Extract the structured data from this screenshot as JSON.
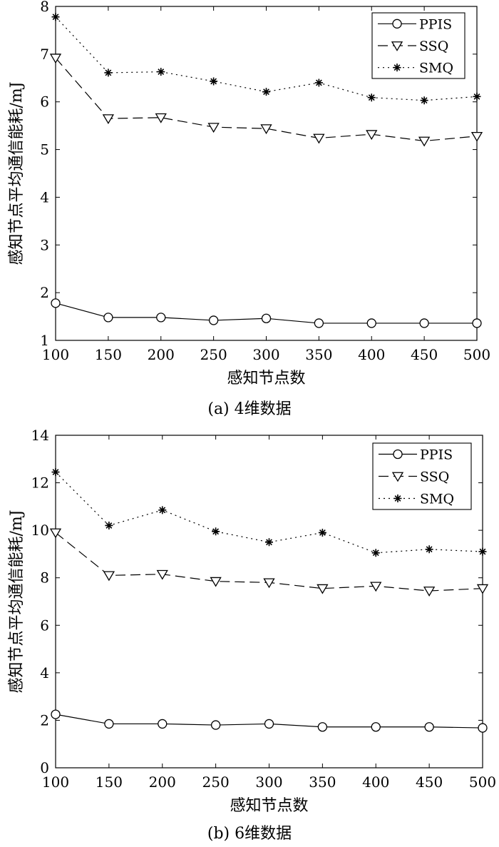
{
  "chart_data": [
    {
      "type": "line",
      "caption": "(a) 4维数据",
      "xlabel": "感知节点数",
      "ylabel": "感知节点平均通信能耗/mJ",
      "xlim": [
        100,
        500
      ],
      "ylim": [
        1,
        8
      ],
      "xticks": [
        100,
        150,
        200,
        250,
        300,
        350,
        400,
        450,
        500
      ],
      "yticks": [
        1,
        2,
        3,
        4,
        5,
        6,
        7,
        8
      ],
      "grid": false,
      "legend_position": "top-right",
      "x": [
        100,
        150,
        200,
        250,
        300,
        350,
        400,
        450,
        500
      ],
      "series": [
        {
          "name": "PPIS",
          "marker": "circle",
          "dash": "solid",
          "values": [
            1.78,
            1.48,
            1.48,
            1.42,
            1.46,
            1.36,
            1.36,
            1.36,
            1.36
          ]
        },
        {
          "name": "SSQ",
          "marker": "triangle-down",
          "dash": "dashed",
          "values": [
            6.92,
            5.65,
            5.67,
            5.47,
            5.44,
            5.24,
            5.32,
            5.18,
            5.28
          ]
        },
        {
          "name": "SMQ",
          "marker": "asterisk",
          "dash": "dotted",
          "values": [
            7.78,
            6.61,
            6.63,
            6.43,
            6.21,
            6.4,
            6.09,
            6.03,
            6.11
          ]
        }
      ]
    },
    {
      "type": "line",
      "caption": "(b) 6维数据",
      "xlabel": "感知节点数",
      "ylabel": "感知节点平均通信能耗/mJ",
      "xlim": [
        100,
        500
      ],
      "ylim": [
        0,
        14
      ],
      "xticks": [
        100,
        150,
        200,
        250,
        300,
        350,
        400,
        450,
        500
      ],
      "yticks": [
        0,
        2,
        4,
        6,
        8,
        10,
        12,
        14
      ],
      "grid": false,
      "legend_position": "top-right",
      "x": [
        100,
        150,
        200,
        250,
        300,
        350,
        400,
        450,
        500
      ],
      "series": [
        {
          "name": "PPIS",
          "marker": "circle",
          "dash": "solid",
          "values": [
            2.25,
            1.85,
            1.85,
            1.8,
            1.85,
            1.72,
            1.72,
            1.72,
            1.68
          ]
        },
        {
          "name": "SSQ",
          "marker": "triangle-down",
          "dash": "dashed",
          "values": [
            9.9,
            8.1,
            8.15,
            7.85,
            7.8,
            7.55,
            7.65,
            7.45,
            7.55
          ]
        },
        {
          "name": "SMQ",
          "marker": "asterisk",
          "dash": "dotted",
          "values": [
            12.45,
            10.2,
            10.85,
            9.95,
            9.5,
            9.9,
            9.05,
            9.2,
            9.1
          ]
        }
      ]
    }
  ]
}
